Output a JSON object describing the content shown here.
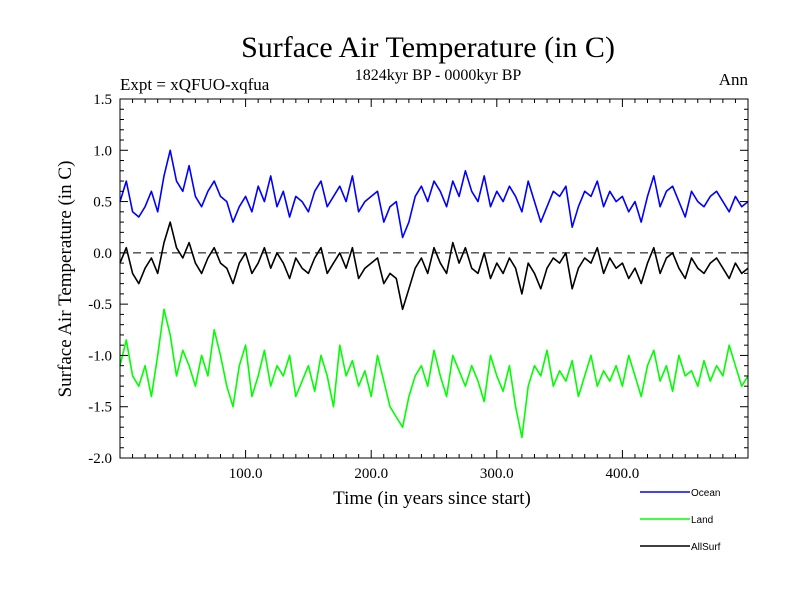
{
  "chart_data": {
    "type": "line",
    "title": "Surface Air Temperature (in C)",
    "subtitle": "1824kyr BP - 0000kyr BP",
    "left_annotation": "Expt = xQFUO-xqfua",
    "right_annotation": "Ann",
    "xlabel": "Time (in years since start)",
    "ylabel": "Surface Air Temperature (in C)",
    "xlim": [
      0,
      500
    ],
    "ylim": [
      -2.0,
      1.5
    ],
    "x_ticks": [
      100,
      200,
      300,
      400
    ],
    "x_tick_labels": [
      "100.0",
      "200.0",
      "300.0",
      "400.0"
    ],
    "y_ticks": [
      -2.0,
      -1.5,
      -1.0,
      -0.5,
      0.0,
      0.5,
      1.0,
      1.5
    ],
    "y_tick_labels": [
      "-2.0",
      "-1.5",
      "-1.0",
      "-0.5",
      "0.0",
      "0.5",
      "1.0",
      "1.5"
    ],
    "reference_line": 0.0,
    "x": [
      0,
      5,
      10,
      15,
      20,
      25,
      30,
      35,
      40,
      45,
      50,
      55,
      60,
      65,
      70,
      75,
      80,
      85,
      90,
      95,
      100,
      105,
      110,
      115,
      120,
      125,
      130,
      135,
      140,
      145,
      150,
      155,
      160,
      165,
      170,
      175,
      180,
      185,
      190,
      195,
      200,
      205,
      210,
      215,
      220,
      225,
      230,
      235,
      240,
      245,
      250,
      255,
      260,
      265,
      270,
      275,
      280,
      285,
      290,
      295,
      300,
      305,
      310,
      315,
      320,
      325,
      330,
      335,
      340,
      345,
      350,
      355,
      360,
      365,
      370,
      375,
      380,
      385,
      390,
      395,
      400,
      405,
      410,
      415,
      420,
      425,
      430,
      435,
      440,
      445,
      450,
      455,
      460,
      465,
      470,
      475,
      480,
      485,
      490,
      495,
      500
    ],
    "series": [
      {
        "name": "Ocean",
        "color": "#0000ff",
        "values": [
          0.5,
          0.7,
          0.4,
          0.35,
          0.45,
          0.6,
          0.4,
          0.75,
          1.0,
          0.7,
          0.6,
          0.85,
          0.55,
          0.45,
          0.6,
          0.7,
          0.55,
          0.5,
          0.3,
          0.45,
          0.55,
          0.4,
          0.65,
          0.5,
          0.75,
          0.45,
          0.6,
          0.35,
          0.55,
          0.5,
          0.4,
          0.6,
          0.7,
          0.45,
          0.55,
          0.65,
          0.5,
          0.75,
          0.4,
          0.5,
          0.55,
          0.6,
          0.3,
          0.45,
          0.5,
          0.15,
          0.3,
          0.55,
          0.65,
          0.5,
          0.7,
          0.6,
          0.45,
          0.7,
          0.55,
          0.8,
          0.6,
          0.5,
          0.75,
          0.45,
          0.6,
          0.5,
          0.65,
          0.55,
          0.4,
          0.7,
          0.5,
          0.3,
          0.45,
          0.6,
          0.55,
          0.65,
          0.25,
          0.45,
          0.6,
          0.55,
          0.7,
          0.45,
          0.6,
          0.5,
          0.55,
          0.4,
          0.5,
          0.3,
          0.55,
          0.75,
          0.45,
          0.6,
          0.65,
          0.5,
          0.35,
          0.6,
          0.5,
          0.45,
          0.55,
          0.6,
          0.5,
          0.4,
          0.55,
          0.45,
          0.5
        ]
      },
      {
        "name": "Land",
        "color": "#00ff00",
        "values": [
          -1.1,
          -0.85,
          -1.2,
          -1.3,
          -1.1,
          -1.4,
          -1.0,
          -0.55,
          -0.8,
          -1.2,
          -0.95,
          -1.1,
          -1.3,
          -1.0,
          -1.2,
          -0.75,
          -1.0,
          -1.3,
          -1.5,
          -1.1,
          -0.9,
          -1.4,
          -1.2,
          -0.95,
          -1.3,
          -1.1,
          -1.2,
          -1.0,
          -1.4,
          -1.25,
          -1.1,
          -1.35,
          -1.0,
          -1.2,
          -1.5,
          -0.9,
          -1.2,
          -1.05,
          -1.3,
          -1.15,
          -1.4,
          -1.0,
          -1.25,
          -1.5,
          -1.6,
          -1.7,
          -1.4,
          -1.2,
          -1.1,
          -1.3,
          -0.95,
          -1.2,
          -1.4,
          -1.0,
          -1.15,
          -1.3,
          -1.1,
          -1.25,
          -1.45,
          -1.0,
          -1.2,
          -1.35,
          -1.1,
          -1.5,
          -1.8,
          -1.3,
          -1.1,
          -1.2,
          -0.95,
          -1.3,
          -1.15,
          -1.25,
          -1.05,
          -1.4,
          -1.2,
          -1.0,
          -1.3,
          -1.15,
          -1.25,
          -1.1,
          -1.3,
          -1.0,
          -1.2,
          -1.4,
          -1.1,
          -0.95,
          -1.25,
          -1.1,
          -1.35,
          -1.0,
          -1.2,
          -1.15,
          -1.3,
          -1.05,
          -1.25,
          -1.1,
          -1.2,
          -0.9,
          -1.1,
          -1.3,
          -1.2
        ]
      },
      {
        "name": "AllSurf",
        "color": "#000000",
        "values": [
          -0.1,
          0.05,
          -0.2,
          -0.3,
          -0.15,
          -0.05,
          -0.2,
          0.1,
          0.3,
          0.05,
          -0.05,
          0.1,
          -0.1,
          -0.2,
          -0.05,
          0.05,
          -0.1,
          -0.15,
          -0.3,
          -0.1,
          0.0,
          -0.2,
          -0.1,
          0.05,
          -0.15,
          0.0,
          -0.1,
          -0.25,
          -0.05,
          -0.15,
          -0.2,
          -0.05,
          0.05,
          -0.2,
          -0.1,
          0.0,
          -0.15,
          0.05,
          -0.25,
          -0.15,
          -0.1,
          -0.05,
          -0.3,
          -0.2,
          -0.25,
          -0.55,
          -0.35,
          -0.15,
          -0.05,
          -0.2,
          0.05,
          -0.1,
          -0.2,
          0.1,
          -0.1,
          0.05,
          -0.15,
          -0.2,
          0.0,
          -0.25,
          -0.1,
          -0.2,
          -0.05,
          -0.15,
          -0.4,
          -0.1,
          -0.2,
          -0.35,
          -0.15,
          -0.05,
          -0.1,
          0.0,
          -0.35,
          -0.15,
          -0.05,
          -0.1,
          0.05,
          -0.2,
          -0.05,
          -0.15,
          -0.1,
          -0.25,
          -0.15,
          -0.3,
          -0.1,
          0.05,
          -0.2,
          -0.05,
          0.0,
          -0.15,
          -0.25,
          -0.05,
          -0.15,
          -0.2,
          -0.1,
          -0.05,
          -0.15,
          -0.25,
          -0.1,
          -0.2,
          -0.15
        ]
      }
    ],
    "legend": [
      {
        "name": "Ocean",
        "color": "#0000ff"
      },
      {
        "name": "Land",
        "color": "#00ff00"
      },
      {
        "name": "AllSurf",
        "color": "#000000"
      }
    ],
    "legend_position": "bottom-right"
  }
}
